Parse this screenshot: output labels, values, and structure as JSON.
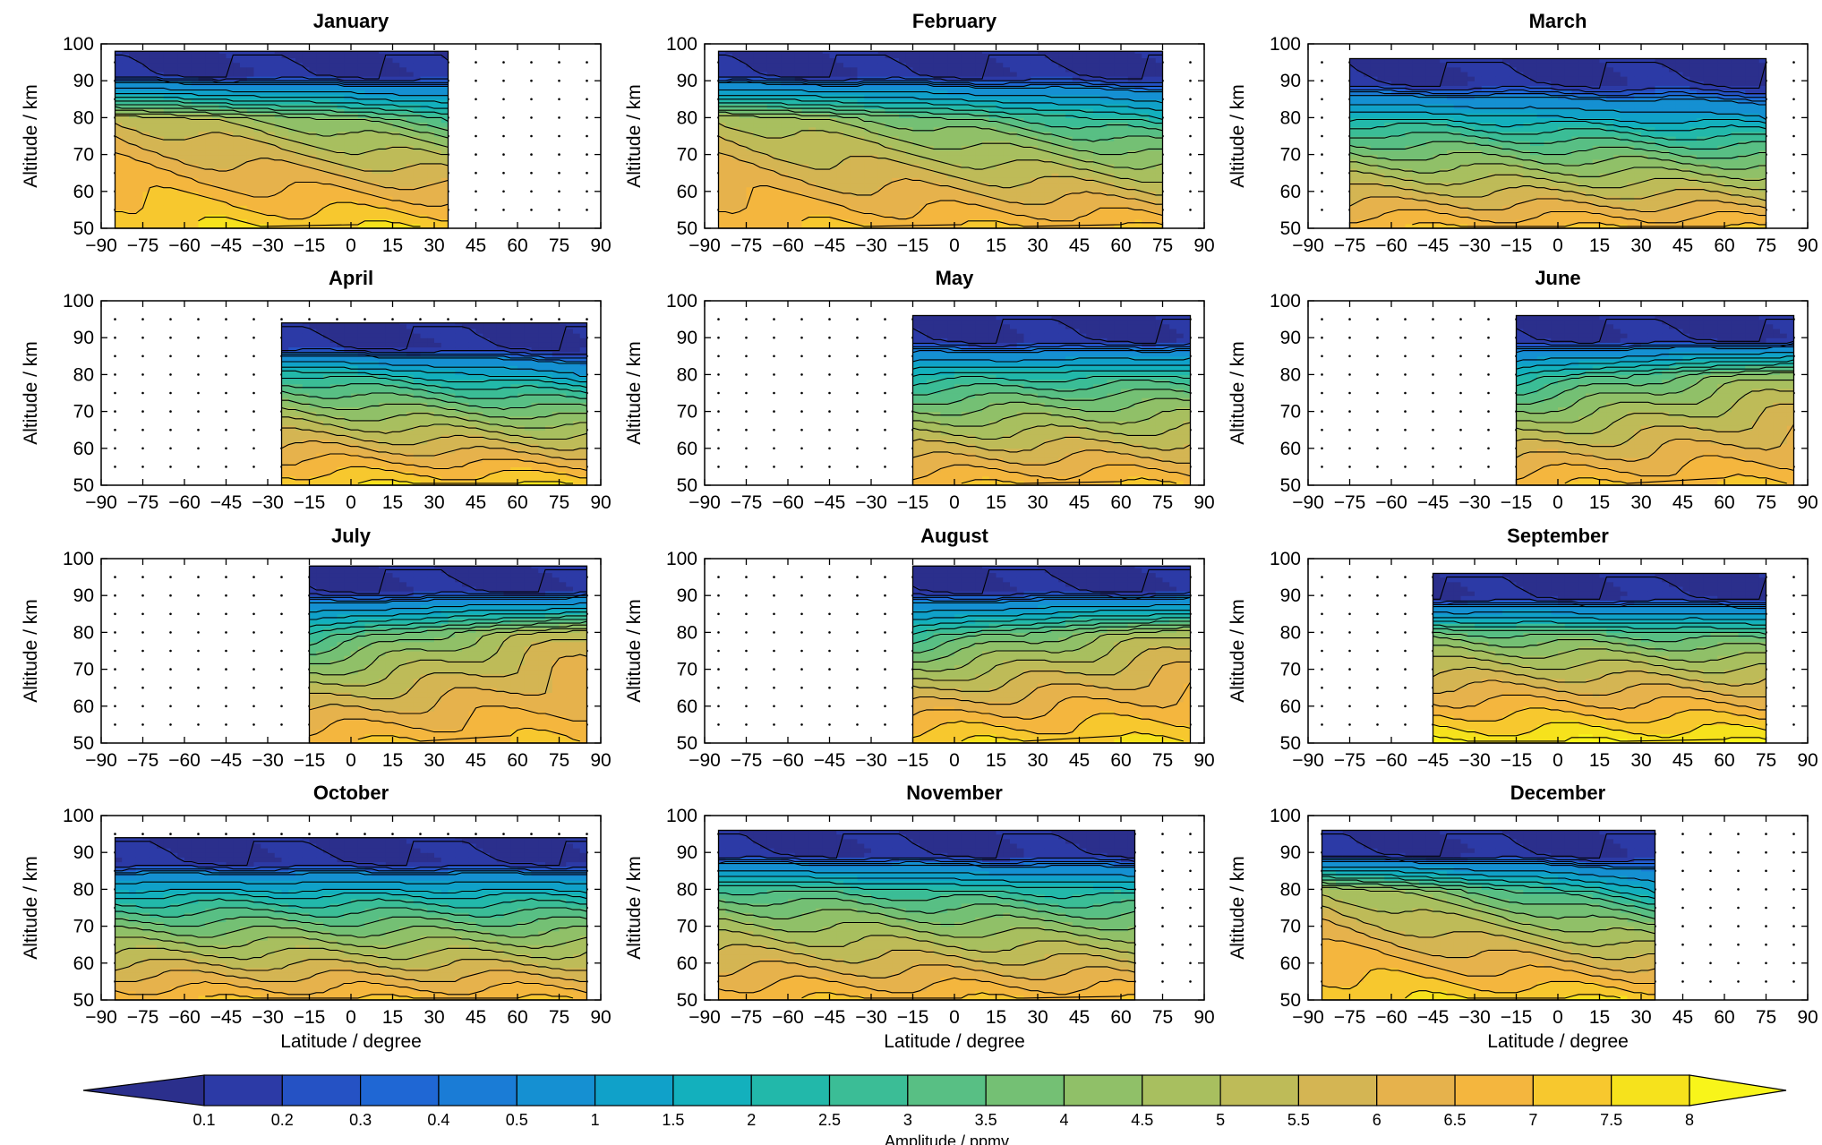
{
  "chart_data": {
    "type": "heatmap",
    "subplot_layout": "4 rows x 3 columns",
    "x_ticks": [
      -90,
      -75,
      -60,
      -45,
      -30,
      -15,
      0,
      15,
      30,
      45,
      60,
      75,
      90
    ],
    "y_ticks": [
      50,
      60,
      70,
      80,
      90,
      100
    ],
    "xlim": [
      -90,
      90
    ],
    "ylim": [
      50,
      100
    ],
    "xlabel": "Latitude / degree",
    "ylabel": "Altitude / km",
    "grid": "dotted grid in regions without data",
    "colorbar": {
      "label": "Amplitude / ppmv",
      "levels": [
        "0.1",
        "0.2",
        "0.3",
        "0.4",
        "0.5",
        "1",
        "1.5",
        "2",
        "2.5",
        "3",
        "3.5",
        "4",
        "4.5",
        "5",
        "5.5",
        "6",
        "6.5",
        "7",
        "7.5",
        "8"
      ],
      "colors": [
        "#2b2f8c",
        "#2c3aa6",
        "#2552c4",
        "#1f67d4",
        "#1a7cd6",
        "#1590d2",
        "#10a1c9",
        "#13b0bd",
        "#22b8aa",
        "#3bbd96",
        "#58bf84",
        "#74c074",
        "#90c068",
        "#a8bf5f",
        "#bebb58",
        "#d4b553",
        "#e6b24c",
        "#f4b63e",
        "#f7c82e",
        "#f6e21c",
        "#f8f51a"
      ],
      "extend": "both"
    },
    "panels": [
      {
        "title": "January",
        "lat_range": [
          -85,
          35
        ],
        "amp_80km_south": 5.5,
        "amp_80km_north": 3.0,
        "max_low_alt": 7.5,
        "top_min_alt": 92
      },
      {
        "title": "February",
        "lat_range": [
          -85,
          75
        ],
        "amp_80km_south": 5.0,
        "amp_80km_north": 2.0,
        "max_low_alt": 7.0,
        "top_min_alt": 92
      },
      {
        "title": "March",
        "lat_range": [
          -75,
          75
        ],
        "amp_80km_south": 2.0,
        "amp_80km_north": 1.0,
        "max_low_alt": 7.0,
        "top_min_alt": 90
      },
      {
        "title": "April",
        "lat_range": [
          -25,
          85
        ],
        "amp_80km_south": 2.5,
        "amp_80km_north": 1.0,
        "max_low_alt": 7.5,
        "top_min_alt": 88
      },
      {
        "title": "May",
        "lat_range": [
          -15,
          85
        ],
        "amp_80km_south": 2.0,
        "amp_80km_north": 2.5,
        "max_low_alt": 7.0,
        "top_min_alt": 90
      },
      {
        "title": "June",
        "lat_range": [
          -15,
          85
        ],
        "amp_80km_south": 2.0,
        "amp_80km_north": 4.5,
        "max_low_alt": 7.0,
        "top_min_alt": 90
      },
      {
        "title": "July",
        "lat_range": [
          -15,
          85
        ],
        "amp_80km_south": 2.5,
        "amp_80km_north": 5.5,
        "max_low_alt": 7.0,
        "top_min_alt": 92
      },
      {
        "title": "August",
        "lat_range": [
          -15,
          85
        ],
        "amp_80km_south": 2.5,
        "amp_80km_north": 5.0,
        "max_low_alt": 7.5,
        "top_min_alt": 92
      },
      {
        "title": "September",
        "lat_range": [
          -45,
          75
        ],
        "amp_80km_south": 3.5,
        "amp_80km_north": 3.0,
        "max_low_alt": 8.0,
        "top_min_alt": 90
      },
      {
        "title": "October",
        "lat_range": [
          -85,
          85
        ],
        "amp_80km_south": 1.5,
        "amp_80km_north": 1.5,
        "max_low_alt": 7.0,
        "top_min_alt": 88
      },
      {
        "title": "November",
        "lat_range": [
          -85,
          65
        ],
        "amp_80km_south": 3.0,
        "amp_80km_north": 2.0,
        "max_low_alt": 7.0,
        "top_min_alt": 90
      },
      {
        "title": "December",
        "lat_range": [
          -85,
          35
        ],
        "amp_80km_south": 5.0,
        "amp_80km_north": 1.5,
        "max_low_alt": 7.5,
        "top_min_alt": 90
      }
    ]
  }
}
